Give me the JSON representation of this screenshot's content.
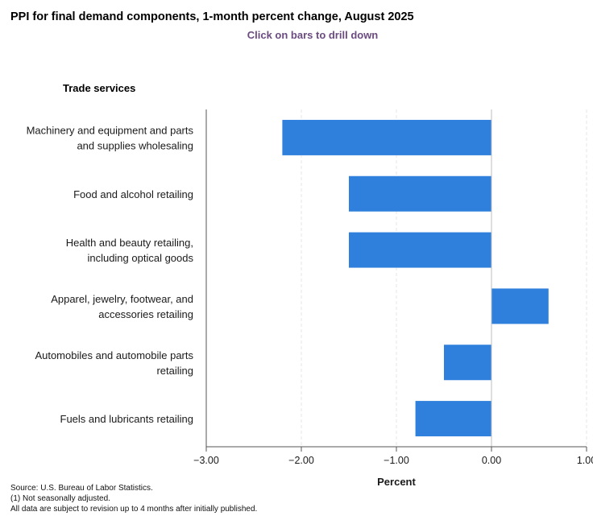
{
  "header": {
    "title": "PPI for final demand components, 1-month percent change, August 2025",
    "subtitle": "Click on bars to drill down"
  },
  "chart_data": {
    "type": "bar",
    "orientation": "horizontal",
    "group_title": "Trade services",
    "categories": [
      [
        "Machinery and equipment and parts",
        "and supplies wholesaling"
      ],
      [
        "Food and alcohol retailing"
      ],
      [
        "Health and beauty retailing,",
        "including optical goods"
      ],
      [
        "Apparel, jewelry, footwear, and",
        "accessories retailing"
      ],
      [
        "Automobiles and automobile parts",
        "retailing"
      ],
      [
        "Fuels and lubricants retailing"
      ]
    ],
    "values": [
      -2.2,
      -1.5,
      -1.5,
      0.6,
      -0.5,
      -0.8
    ],
    "xlim": [
      -3.0,
      1.0
    ],
    "xticks": [
      -3.0,
      -2.0,
      -1.0,
      0.0,
      1.0
    ],
    "xtick_labels": [
      "−3.00",
      "−2.00",
      "−1.00",
      "0.00",
      "1.00"
    ],
    "xlabel": "Percent",
    "ylabel": "",
    "grid": true,
    "bar_color": "#2f80dc"
  },
  "footnotes": {
    "source": "Source: U.S. Bureau of Labor Statistics.",
    "note1": "(1) Not seasonally adjusted.",
    "note2": "All data are subject to revision up to 4 months after initially published."
  }
}
